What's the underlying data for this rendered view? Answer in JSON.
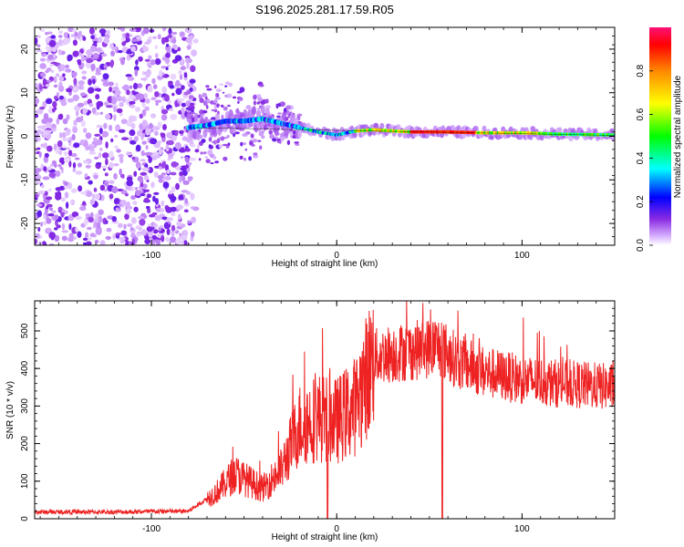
{
  "title": "S196.2025.281.17.59.R05",
  "chart_data": [
    {
      "type": "heatmap",
      "name": "spectrogram",
      "xlabel": "Height of straight line (km)",
      "ylabel": "Frequency (Hz)",
      "xlim": [
        -163,
        150
      ],
      "ylim": [
        -25,
        25
      ],
      "xticks": [
        -100,
        0,
        100
      ],
      "yticks": [
        -20,
        -10,
        0,
        10,
        20
      ],
      "colorbar": {
        "label": "Normalized spectral amplitude",
        "range": [
          0,
          1
        ],
        "ticks": [
          0.0,
          0.2,
          0.4,
          0.6,
          0.8
        ]
      },
      "noise_region_x": [
        -163,
        -80
      ],
      "signal_ridge": [
        {
          "x": -80,
          "f": 2.0
        },
        {
          "x": -70,
          "f": 2.5
        },
        {
          "x": -60,
          "f": 3.5
        },
        {
          "x": -50,
          "f": 3.5
        },
        {
          "x": -40,
          "f": 4.0
        },
        {
          "x": -30,
          "f": 3.0
        },
        {
          "x": -20,
          "f": 2.0
        },
        {
          "x": -10,
          "f": 1.0
        },
        {
          "x": 0,
          "f": 0.3
        },
        {
          "x": 10,
          "f": 1.2
        },
        {
          "x": 20,
          "f": 1.5
        },
        {
          "x": 40,
          "f": 1.0
        },
        {
          "x": 60,
          "f": 1.0
        },
        {
          "x": 80,
          "f": 0.8
        },
        {
          "x": 100,
          "f": 0.8
        },
        {
          "x": 120,
          "f": 0.5
        },
        {
          "x": 150,
          "f": 0.3
        }
      ]
    },
    {
      "type": "line",
      "name": "snr",
      "xlabel": "Height of straight line (km)",
      "ylabel": "SNR (10 * v/v)",
      "xlim": [
        -163,
        150
      ],
      "ylim": [
        0,
        580
      ],
      "xticks": [
        -100,
        0,
        100
      ],
      "yticks": [
        0,
        100,
        200,
        300,
        400,
        500
      ],
      "color": "#ee2222",
      "envelope": [
        {
          "x": -163,
          "y": 18
        },
        {
          "x": -120,
          "y": 18
        },
        {
          "x": -80,
          "y": 20
        },
        {
          "x": -65,
          "y": 70
        },
        {
          "x": -55,
          "y": 120
        },
        {
          "x": -40,
          "y": 80
        },
        {
          "x": -30,
          "y": 130
        },
        {
          "x": -20,
          "y": 250
        },
        {
          "x": -10,
          "y": 270
        },
        {
          "x": 0,
          "y": 260
        },
        {
          "x": 10,
          "y": 300
        },
        {
          "x": 20,
          "y": 430
        },
        {
          "x": 30,
          "y": 440
        },
        {
          "x": 45,
          "y": 450
        },
        {
          "x": 55,
          "y": 460
        },
        {
          "x": 65,
          "y": 420
        },
        {
          "x": 80,
          "y": 390
        },
        {
          "x": 100,
          "y": 370
        },
        {
          "x": 120,
          "y": 360
        },
        {
          "x": 150,
          "y": 350
        }
      ],
      "dropouts": [
        {
          "x": -5,
          "y": 0
        },
        {
          "x": 57,
          "y": 0
        }
      ]
    }
  ]
}
